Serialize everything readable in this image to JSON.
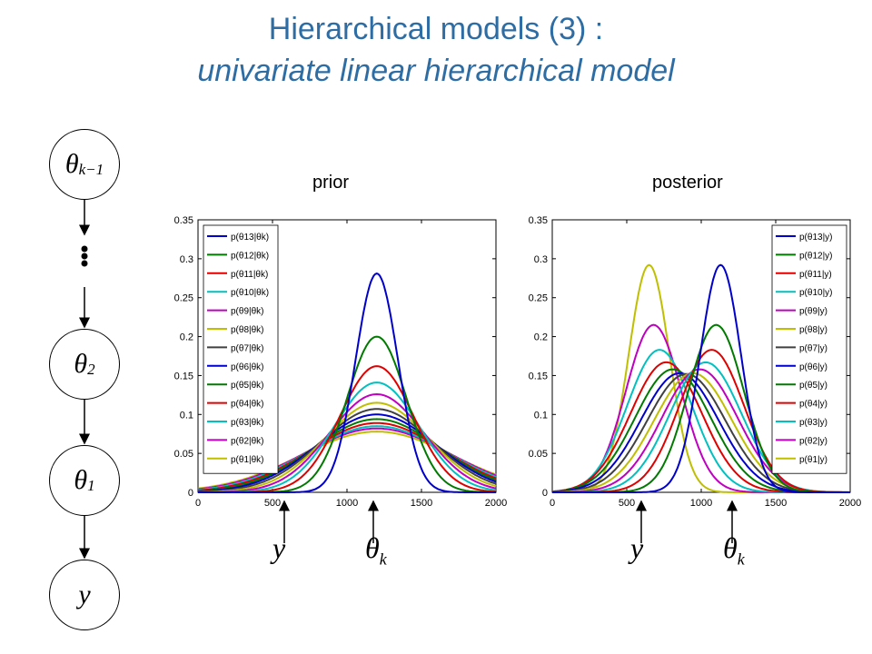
{
  "title": {
    "line1": "Hierarchical models (3) :",
    "line2": "univariate linear hierarchical model",
    "color": "#2e6da4"
  },
  "graph": {
    "nodes": [
      {
        "symbol": "θ",
        "subscript": "k−1"
      },
      {
        "symbol": "θ",
        "subscript": "2"
      },
      {
        "symbol": "θ",
        "subscript": "1"
      },
      {
        "symbol": "y",
        "subscript": ""
      }
    ],
    "ellipsis": "⋮"
  },
  "panels": {
    "prior_label": "prior",
    "posterior_label": "posterior"
  },
  "annotations": {
    "y": "y",
    "theta": "θ",
    "theta_sub": "k"
  },
  "chart_data": [
    {
      "type": "line",
      "name": "prior",
      "x_ticks": [
        0,
        500,
        1000,
        1500,
        2000
      ],
      "y_ticks": [
        "0",
        "0.05",
        "0.1",
        "0.15",
        "0.2",
        "0.25",
        "0.3",
        "0.35"
      ],
      "xlim": [
        0,
        2000
      ],
      "ylim": [
        0,
        0.35
      ],
      "legend_position": "top-left",
      "series": [
        {
          "name": "p(θ13|θk)",
          "color": "#0000cc",
          "mu": 1200,
          "sigma": 142,
          "peak": 0.281
        },
        {
          "name": "p(θ12|θk)",
          "color": "#007a00",
          "mu": 1200,
          "sigma": 199,
          "peak": 0.2
        },
        {
          "name": "p(θ11|θk)",
          "color": "#e00000",
          "mu": 1200,
          "sigma": 246,
          "peak": 0.162
        },
        {
          "name": "p(θ10|θk)",
          "color": "#00c0c0",
          "mu": 1200,
          "sigma": 283,
          "peak": 0.141
        },
        {
          "name": "p(θ9|θk)",
          "color": "#c000c0",
          "mu": 1200,
          "sigma": 316,
          "peak": 0.126
        },
        {
          "name": "p(θ8|θk)",
          "color": "#bfbf00",
          "mu": 1200,
          "sigma": 346,
          "peak": 0.115
        },
        {
          "name": "p(θ7|θk)",
          "color": "#404040",
          "mu": 1200,
          "sigma": 374,
          "peak": 0.107
        },
        {
          "name": "p(θ6|θk)",
          "color": "#0000cc",
          "mu": 1200,
          "sigma": 400,
          "peak": 0.1
        },
        {
          "name": "p(θ5|θk)",
          "color": "#007a00",
          "mu": 1200,
          "sigma": 424,
          "peak": 0.094
        },
        {
          "name": "p(θ4|θk)",
          "color": "#e00000",
          "mu": 1200,
          "sigma": 447,
          "peak": 0.089
        },
        {
          "name": "p(θ3|θk)",
          "color": "#00c0c0",
          "mu": 1200,
          "sigma": 469,
          "peak": 0.085
        },
        {
          "name": "p(θ2|θk)",
          "color": "#c000c0",
          "mu": 1200,
          "sigma": 490,
          "peak": 0.082
        },
        {
          "name": "p(θ1|θk)",
          "color": "#bfbf00",
          "mu": 1200,
          "sigma": 510,
          "peak": 0.078
        }
      ]
    },
    {
      "type": "line",
      "name": "posterior",
      "x_ticks": [
        0,
        500,
        1000,
        1500,
        2000
      ],
      "y_ticks": [
        "0",
        "0.05",
        "0.1",
        "0.15",
        "0.2",
        "0.25",
        "0.3",
        "0.35"
      ],
      "xlim": [
        0,
        2000
      ],
      "ylim": [
        0,
        0.35
      ],
      "legend_position": "top-right",
      "series": [
        {
          "name": "p(θ13|y)",
          "color": "#0000cc",
          "mu": 1130,
          "sigma": 137,
          "peak": 0.292
        },
        {
          "name": "p(θ12|y)",
          "color": "#007a00",
          "mu": 1100,
          "sigma": 186,
          "peak": 0.215
        },
        {
          "name": "p(θ11|y)",
          "color": "#e00000",
          "mu": 1070,
          "sigma": 218,
          "peak": 0.183
        },
        {
          "name": "p(θ10|y)",
          "color": "#00c0c0",
          "mu": 1030,
          "sigma": 240,
          "peak": 0.167
        },
        {
          "name": "p(θ9|y)",
          "color": "#c000c0",
          "mu": 990,
          "sigma": 254,
          "peak": 0.158
        },
        {
          "name": "p(θ8|y)",
          "color": "#bfbf00",
          "mu": 945,
          "sigma": 261,
          "peak": 0.153
        },
        {
          "name": "p(θ7|y)",
          "color": "#404040",
          "mu": 900,
          "sigma": 263,
          "peak": 0.152
        },
        {
          "name": "p(θ6|y)",
          "color": "#0000cc",
          "mu": 855,
          "sigma": 261,
          "peak": 0.153
        },
        {
          "name": "p(θ5|y)",
          "color": "#007a00",
          "mu": 810,
          "sigma": 254,
          "peak": 0.158
        },
        {
          "name": "p(θ4|y)",
          "color": "#e00000",
          "mu": 765,
          "sigma": 240,
          "peak": 0.167
        },
        {
          "name": "p(θ3|y)",
          "color": "#00c0c0",
          "mu": 720,
          "sigma": 218,
          "peak": 0.183
        },
        {
          "name": "p(θ2|y)",
          "color": "#c000c0",
          "mu": 680,
          "sigma": 186,
          "peak": 0.215
        },
        {
          "name": "p(θ1|y)",
          "color": "#bfbf00",
          "mu": 650,
          "sigma": 137,
          "peak": 0.292
        }
      ]
    }
  ]
}
